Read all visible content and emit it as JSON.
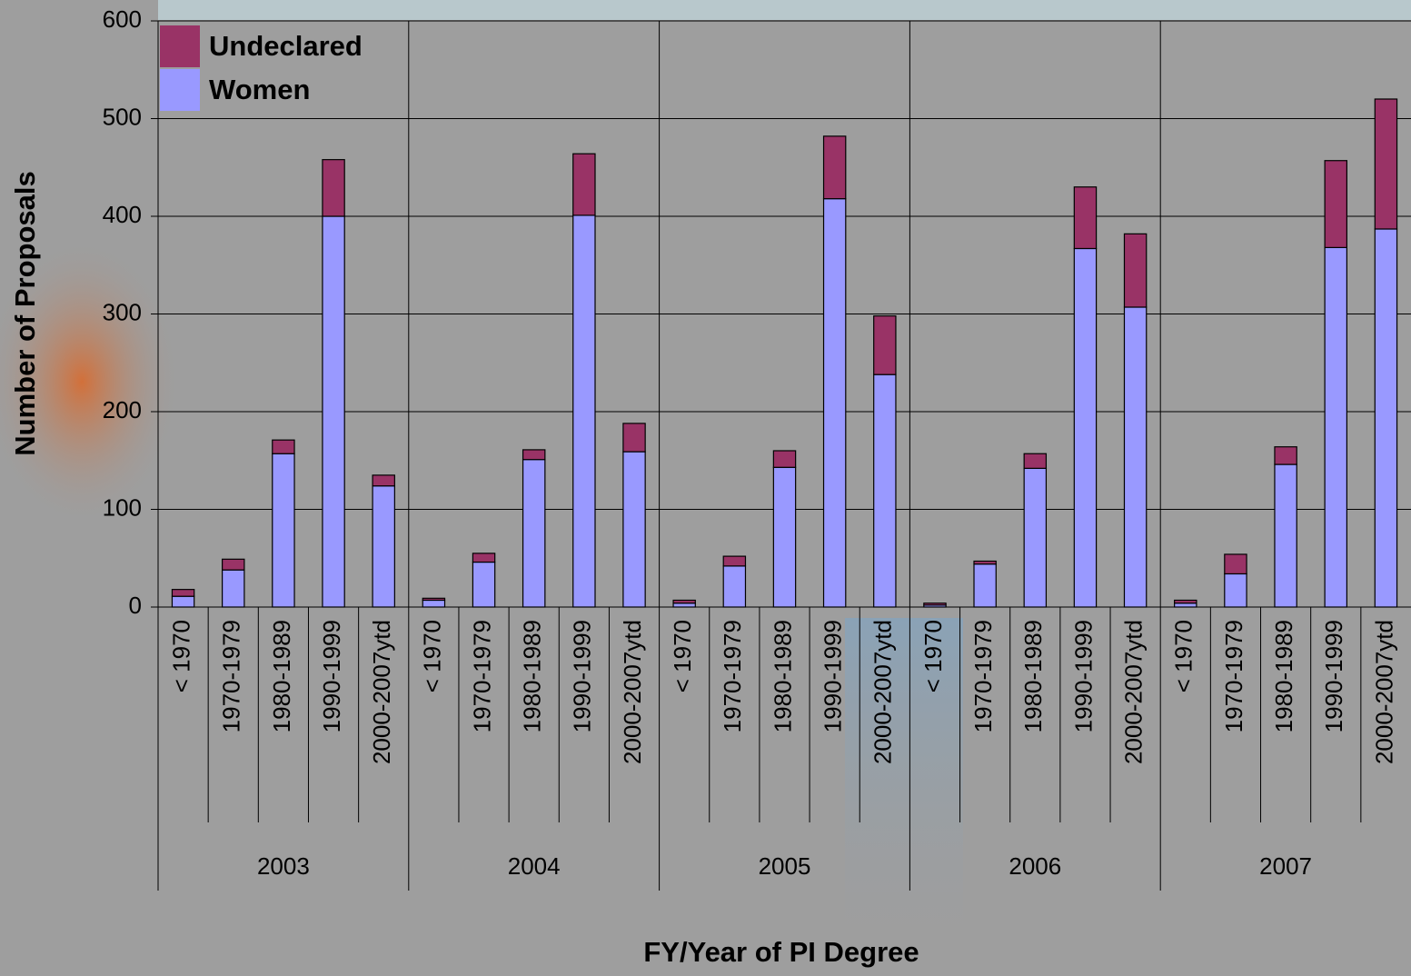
{
  "chart_data": {
    "type": "bar",
    "stacked": true,
    "ylabel": "Number of Proposals",
    "xlabel": "FY/Year of PI Degree",
    "groups": [
      "2003",
      "2004",
      "2005",
      "2006",
      "2007"
    ],
    "categories": [
      "< 1970",
      "1970-1979",
      "1980-1989",
      "1990-1999",
      "2000-2007ytd",
      "< 1970",
      "1970-1979",
      "1980-1989",
      "1990-1999",
      "2000-2007ytd",
      "< 1970",
      "1970-1979",
      "1980-1989",
      "1990-1999",
      "2000-2007ytd",
      "< 1970",
      "1970-1979",
      "1980-1989",
      "1990-1999",
      "2000-2007ytd",
      "< 1970",
      "1970-1979",
      "1980-1989",
      "1990-1999",
      "2000-2007ytd"
    ],
    "series": [
      {
        "name": "Women",
        "color": "#9999ff",
        "values": [
          11,
          38,
          157,
          400,
          124,
          7,
          46,
          151,
          401,
          159,
          4,
          42,
          143,
          418,
          238,
          2,
          44,
          142,
          367,
          307,
          4,
          34,
          146,
          368,
          387
        ]
      },
      {
        "name": "Undeclared",
        "color": "#993366",
        "values": [
          7,
          11,
          14,
          58,
          11,
          2,
          9,
          10,
          63,
          29,
          3,
          10,
          17,
          64,
          60,
          2,
          3,
          15,
          63,
          75,
          3,
          20,
          18,
          89,
          133
        ]
      }
    ],
    "ylim": [
      0,
      600
    ],
    "yticks": [
      0,
      100,
      200,
      300,
      400,
      500,
      600
    ],
    "grid": true,
    "legend": "upper-left"
  }
}
